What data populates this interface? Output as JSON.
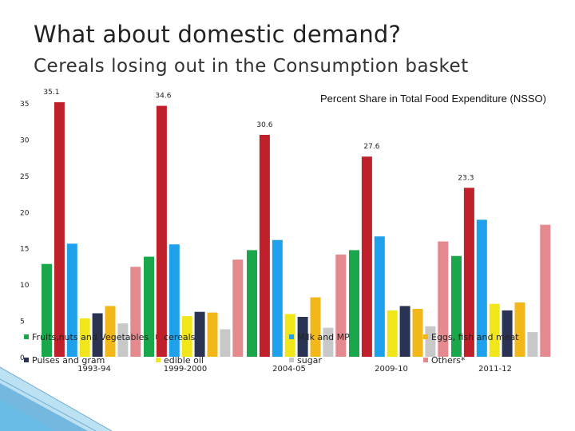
{
  "slide": {
    "title": "What about domestic demand?",
    "subtitle": "Cereals losing out in the Consumption basket"
  },
  "colors": {
    "fruits": "#1aa64a",
    "cereals": "#c0202a",
    "milk": "#1ea0ea",
    "edible_oil": "#f0e61a",
    "pulses": "#2a3452",
    "eggs": "#f2b81a",
    "sugar": "#c8c8c8",
    "others": "#e48a8e"
  },
  "chart_data": {
    "type": "bar",
    "title": "Percent Share in Total Food Expenditure (NSSO)",
    "categories": [
      "1993-94",
      "1999-2000",
      "2004-05",
      "2009-10",
      "2011-12"
    ],
    "y_ticks": [
      "0",
      "5",
      "10",
      "15",
      "20",
      "25",
      "30",
      "35"
    ],
    "ylim": [
      0,
      37
    ],
    "series": [
      {
        "name": "Fruits,nuts and Vegetables",
        "key": "fruits",
        "values": [
          12.8,
          13.8,
          14.7,
          14.7,
          13.9
        ]
      },
      {
        "name": "cereals",
        "key": "cereals",
        "values": [
          35.1,
          34.6,
          30.6,
          27.6,
          23.3
        ]
      },
      {
        "name": "Milk and MP",
        "key": "milk",
        "values": [
          15.6,
          15.5,
          16.1,
          16.6,
          18.9
        ]
      },
      {
        "name": "edible oil",
        "key": "edible_oil",
        "values": [
          5.3,
          5.6,
          5.9,
          6.4,
          7.3
        ]
      },
      {
        "name": "Pulses and gram",
        "key": "pulses",
        "values": [
          6.0,
          6.2,
          5.5,
          7.0,
          6.4
        ]
      },
      {
        "name": "Eggs, fish and meat",
        "key": "eggs",
        "values": [
          7.0,
          6.1,
          8.2,
          6.6,
          7.5
        ]
      },
      {
        "name": "sugar",
        "key": "sugar",
        "values": [
          4.6,
          3.8,
          4.0,
          4.2,
          3.4
        ]
      },
      {
        "name": "Others*",
        "key": "others",
        "values": [
          12.4,
          13.4,
          14.1,
          15.9,
          18.2
        ]
      }
    ],
    "data_labels": [
      "35.1",
      "34.6",
      "30.6",
      "27.6",
      "23.3"
    ],
    "legend_position": "bottom"
  }
}
